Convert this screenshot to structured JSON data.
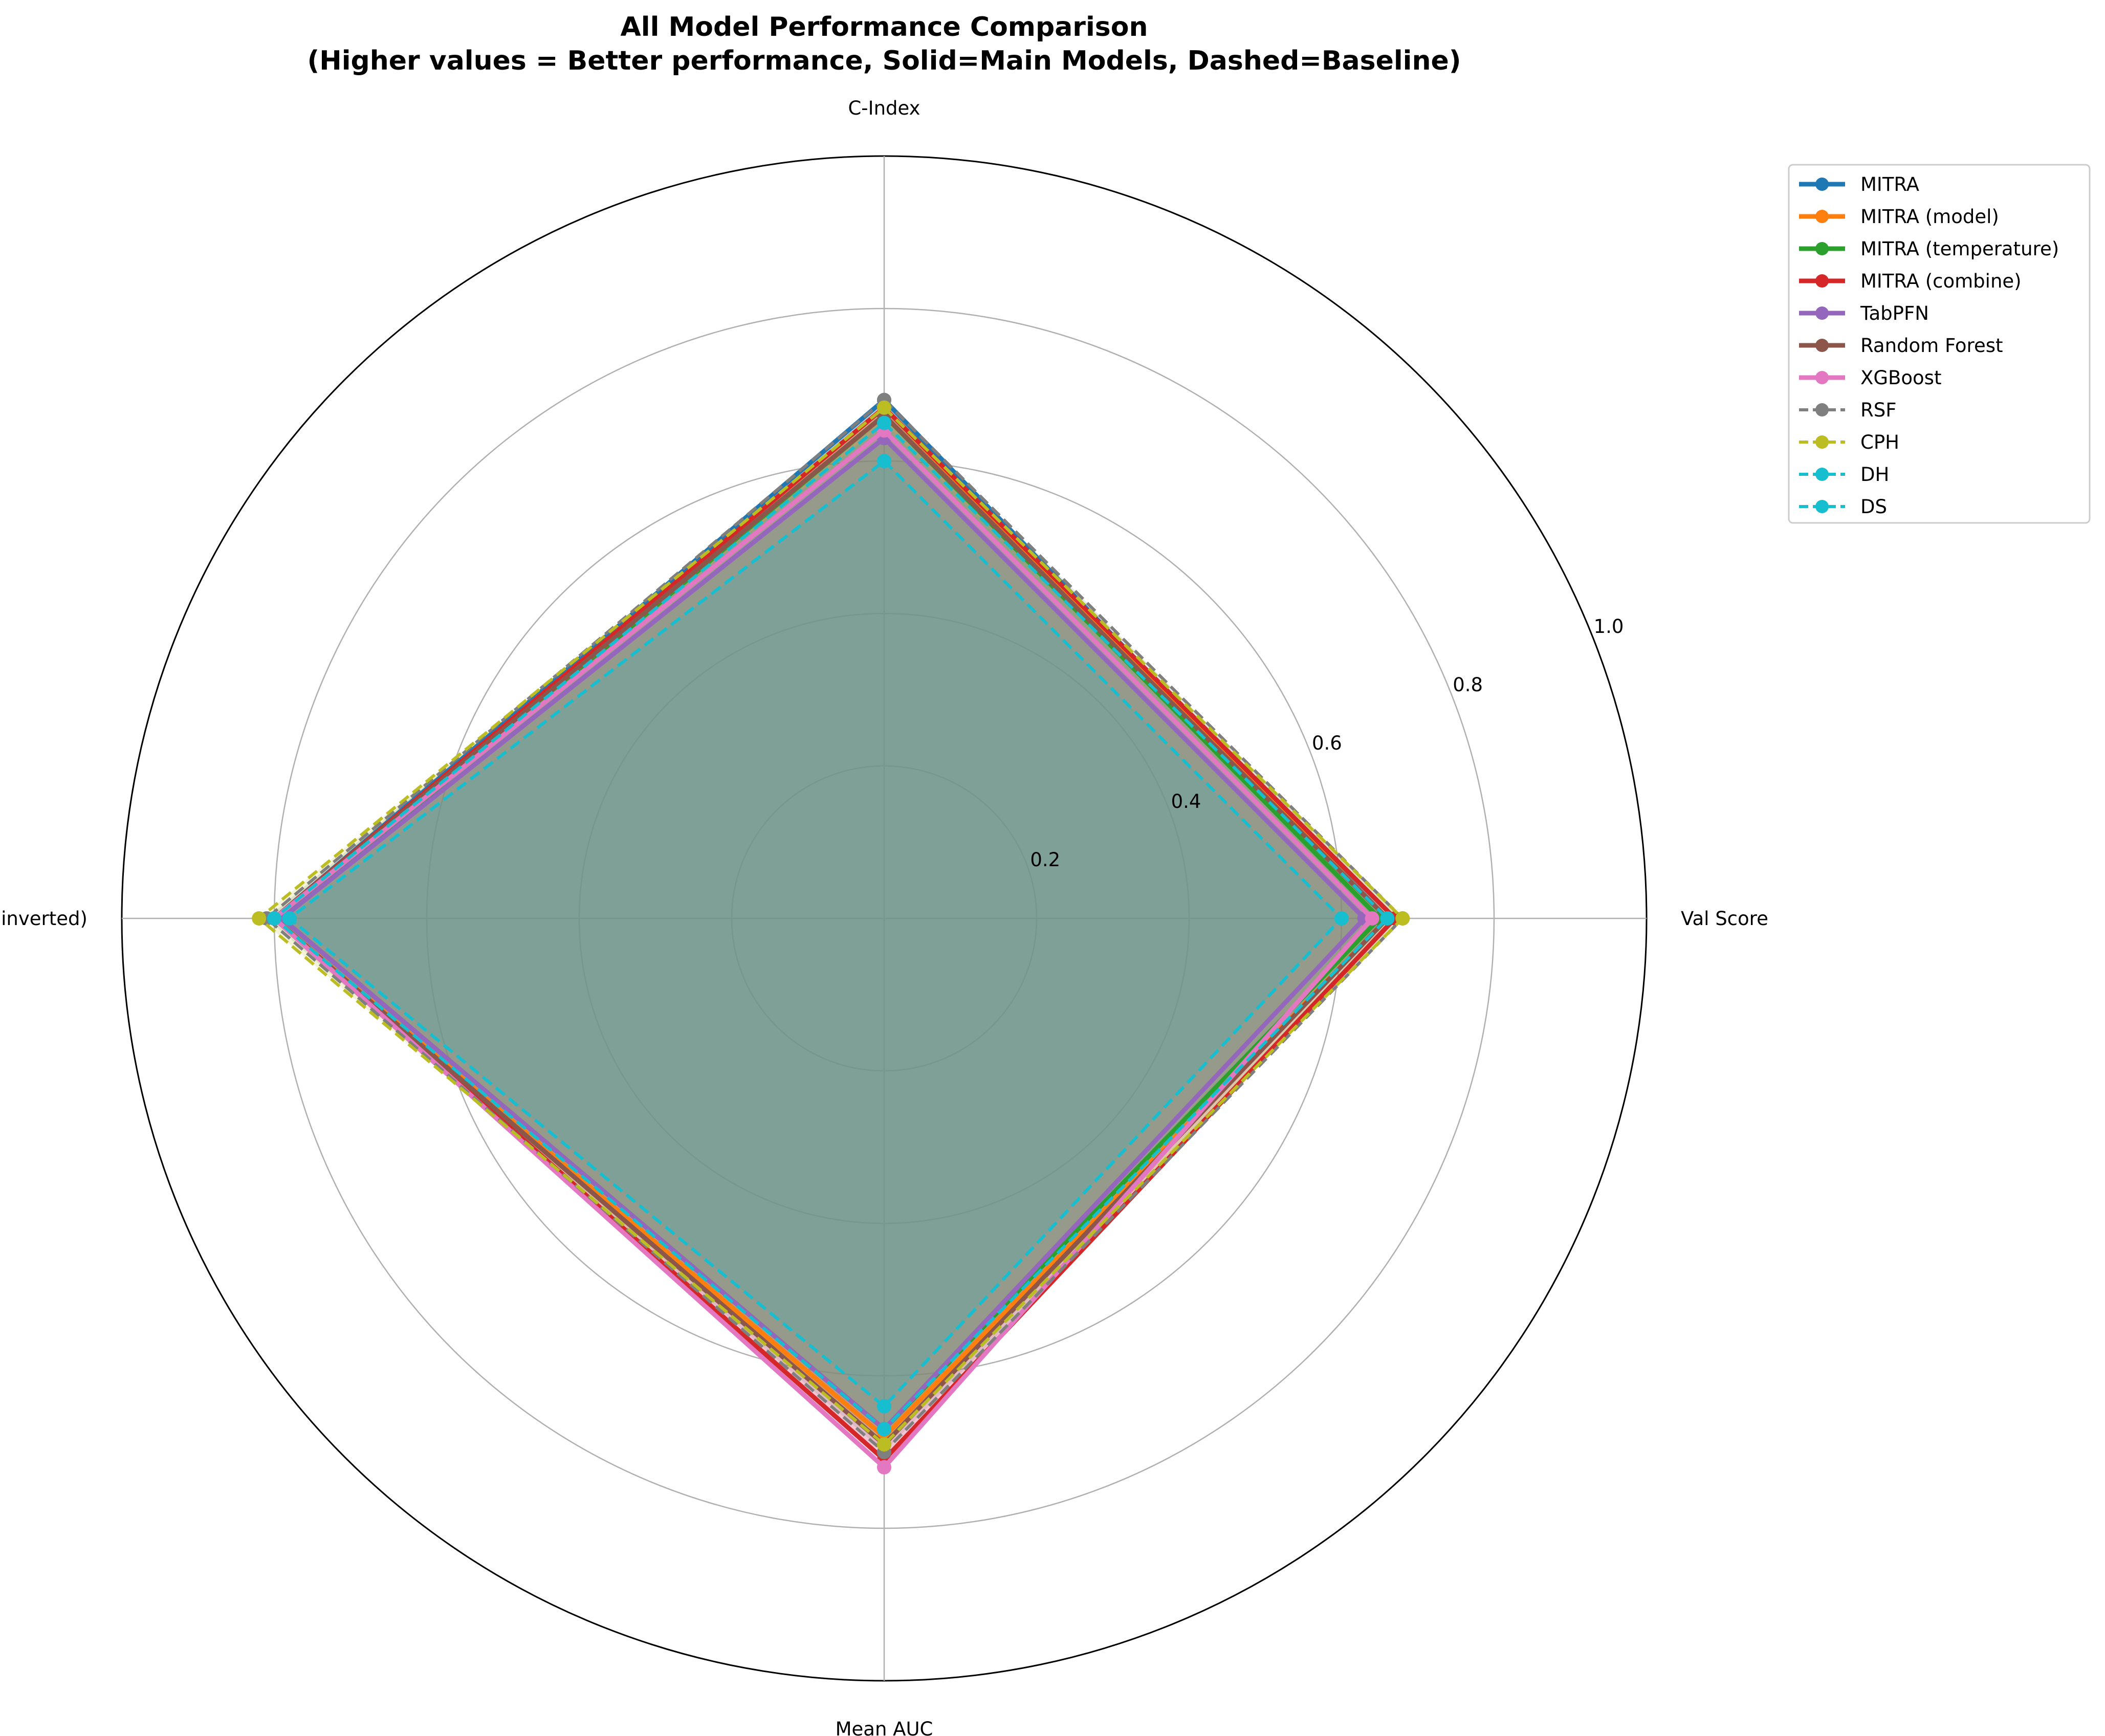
{
  "chart_data": {
    "type": "radar",
    "title": "All Model Performance Comparison",
    "subtitle": "(Higher values = Better performance, Solid=Main Models, Dashed=Baseline)",
    "axes": [
      "C-Index",
      "Val Score",
      "Mean AUC",
      "IBS (inverted)"
    ],
    "rlim": [
      0,
      1.0
    ],
    "rticks": [
      "0.2",
      "0.4",
      "0.6",
      "0.8",
      "1.0"
    ],
    "grid": true,
    "legend_position": "top-right outside",
    "series": [
      {
        "name": "MITRA",
        "color": "#1f77b4",
        "style": "solid",
        "values": [
          0.68,
          0.66,
          0.68,
          0.8
        ]
      },
      {
        "name": "MITRA (model)",
        "color": "#ff7f0e",
        "style": "solid",
        "values": [
          0.67,
          0.66,
          0.68,
          0.8
        ]
      },
      {
        "name": "MITRA (temperature)",
        "color": "#2ca02c",
        "style": "solid",
        "values": [
          0.66,
          0.65,
          0.67,
          0.79
        ]
      },
      {
        "name": "MITRA (combine)",
        "color": "#d62728",
        "style": "solid",
        "values": [
          0.67,
          0.67,
          0.71,
          0.8
        ]
      },
      {
        "name": "TabPFN",
        "color": "#9467bd",
        "style": "solid",
        "values": [
          0.63,
          0.63,
          0.67,
          0.79
        ]
      },
      {
        "name": "Random Forest",
        "color": "#8c564b",
        "style": "solid",
        "values": [
          0.66,
          0.66,
          0.69,
          0.8
        ]
      },
      {
        "name": "XGBoost",
        "color": "#e377c2",
        "style": "solid",
        "values": [
          0.64,
          0.64,
          0.72,
          0.8
        ]
      },
      {
        "name": "RSF",
        "color": "#7f7f7f",
        "style": "dashed",
        "values": [
          0.68,
          0.68,
          0.7,
          0.81
        ]
      },
      {
        "name": "CPH",
        "color": "#bcbd22",
        "style": "dashed",
        "values": [
          0.67,
          0.68,
          0.69,
          0.82
        ]
      },
      {
        "name": "DH",
        "color": "#17becf",
        "style": "dashed",
        "values": [
          0.65,
          0.66,
          0.67,
          0.8
        ]
      },
      {
        "name": "DS",
        "color": "#17becf",
        "style": "dashed",
        "values": [
          0.6,
          0.6,
          0.64,
          0.78
        ]
      }
    ]
  }
}
